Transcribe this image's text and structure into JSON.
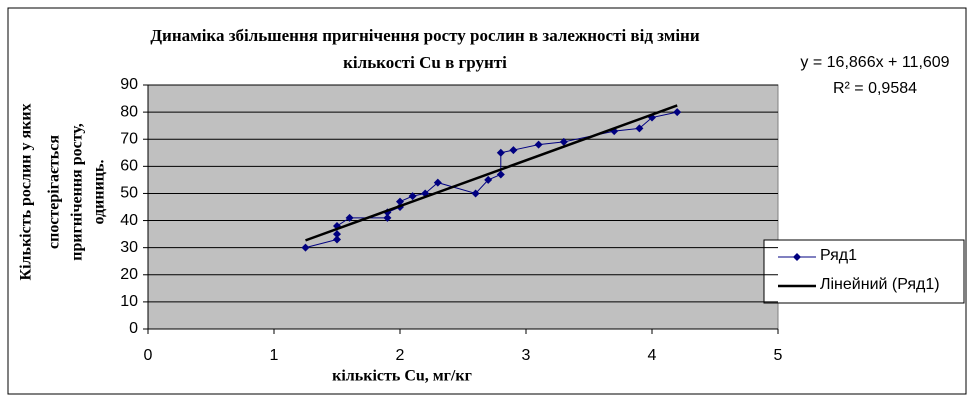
{
  "chart_data": {
    "type": "scatter",
    "title_lines": [
      "Динаміка збільшення пригнічення росту рослин в залежності від зміни",
      "кількості Cu в грунті"
    ],
    "x_label": "кількість Cu, мг/кг",
    "y_label_lines": [
      "Кількість рослин у яких",
      "спостерігається",
      "пригнічення  росту,",
      "одиниць."
    ],
    "xlim": [
      0,
      5
    ],
    "xticks": [
      0,
      1,
      2,
      3,
      4,
      5
    ],
    "ylim": [
      0,
      90
    ],
    "yticks": [
      0,
      10,
      20,
      30,
      40,
      50,
      60,
      70,
      80,
      90
    ],
    "grid": true,
    "legend": "right",
    "series": [
      {
        "name": "Ряд1",
        "color": "#000080",
        "x": [
          1.25,
          1.5,
          1.5,
          1.5,
          1.6,
          1.9,
          1.9,
          2.0,
          2.0,
          2.1,
          2.2,
          2.3,
          2.6,
          2.7,
          2.8,
          2.8,
          2.9,
          3.1,
          3.3,
          3.7,
          3.9,
          4.0,
          4.2
        ],
        "values": [
          30,
          33,
          35,
          38,
          41,
          41,
          43,
          45,
          47,
          49,
          50,
          54,
          50,
          55,
          57,
          65,
          66,
          68,
          69,
          73,
          74,
          78,
          80
        ]
      }
    ],
    "trendline": {
      "name": "Лінейний (Ряд1)",
      "color": "#000000",
      "slope": 16.866,
      "intercept": 11.609,
      "equation": "y = 16,866x + 11,609",
      "r_squared_label": "R² = 0,9584"
    }
  }
}
